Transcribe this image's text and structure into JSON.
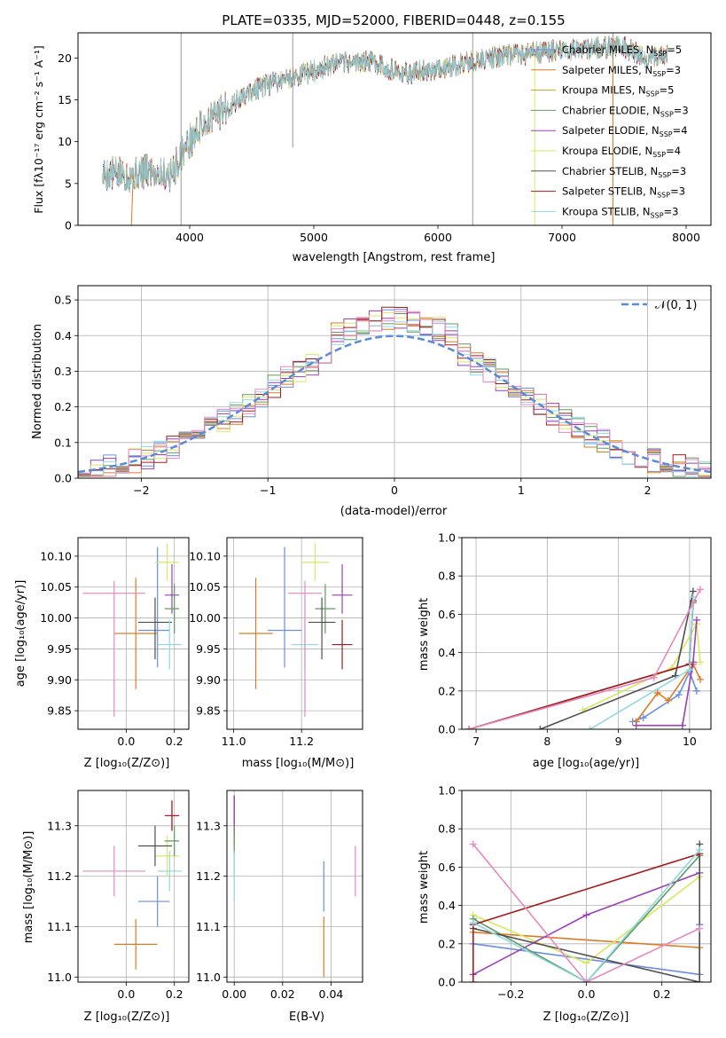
{
  "colors": [
    "#6a8ee0",
    "#e07b24",
    "#c8a020",
    "#5f9a60",
    "#9c3fb8",
    "#d8e860",
    "#505050",
    "#a51c1c",
    "#8fd8e0",
    "#e887c0"
  ],
  "chart_data": [
    {
      "id": "spectrum",
      "type": "line",
      "title": "PLATE=0335, MJD=52000, FIBERID=0448, z=0.155",
      "xlabel": "wavelength [Angstrom, rest frame]",
      "ylabel": "Flux [fλ10⁻¹⁷ erg cm⁻² s⁻¹ A⁻¹]",
      "xlim": [
        3100,
        8200
      ],
      "ylim": [
        0,
        23
      ],
      "xticks": [
        "4000",
        "5000",
        "6000",
        "7000",
        "8000"
      ],
      "yticks": [
        "0",
        "5",
        "10",
        "15",
        "20"
      ],
      "continuum": {
        "x": [
          3300,
          3500,
          3700,
          3850,
          3950,
          4000,
          4100,
          4300,
          4500,
          4700,
          4900,
          5100,
          5300,
          5500,
          5700,
          5900,
          6100,
          6300,
          6500,
          6700,
          6900,
          7100,
          7300,
          7500,
          7700,
          7850
        ],
        "y": [
          6.2,
          6.0,
          6.5,
          6.0,
          9.0,
          10.0,
          12.0,
          14.0,
          16.0,
          17.2,
          18.0,
          19.0,
          19.5,
          19.5,
          18.0,
          18.5,
          19.0,
          19.6,
          20.2,
          20.4,
          20.8,
          21.0,
          21.2,
          21.3,
          19.8,
          20.3
        ]
      },
      "spikes": [
        {
          "x": 4830,
          "y": 9.3
        },
        {
          "x": 6280,
          "y": 0
        },
        {
          "x": 3930,
          "y": 0
        },
        {
          "x": 7410,
          "y": 0
        }
      ],
      "legend_position": "upper right",
      "legend": [
        {
          "label": "Chabrier MILES, N_SSP=5",
          "prefix": "Chabrier MILES, N",
          "sub": "SSP",
          "suffix": "=5"
        },
        {
          "label": "Salpeter MILES, N_SSP=3",
          "prefix": "Salpeter MILES, N",
          "sub": "SSP",
          "suffix": "=3"
        },
        {
          "label": "Kroupa MILES, N_SSP=5",
          "prefix": "Kroupa MILES, N",
          "sub": "SSP",
          "suffix": "=5"
        },
        {
          "label": "Chabrier ELODIE, N_SSP=3",
          "prefix": "Chabrier ELODIE, N",
          "sub": "SSP",
          "suffix": "=3"
        },
        {
          "label": "Salpeter ELODIE, N_SSP=4",
          "prefix": "Salpeter ELODIE, N",
          "sub": "SSP",
          "suffix": "=4"
        },
        {
          "label": "Kroupa ELODIE, N_SSP=4",
          "prefix": "Kroupa ELODIE, N",
          "sub": "SSP",
          "suffix": "=4"
        },
        {
          "label": "Chabrier STELIB, N_SSP=3",
          "prefix": "Chabrier STELIB, N",
          "sub": "SSP",
          "suffix": "=3"
        },
        {
          "label": "Salpeter STELIB, N_SSP=3",
          "prefix": "Salpeter STELIB, N",
          "sub": "SSP",
          "suffix": "=3"
        },
        {
          "label": "Kroupa STELIB, N_SSP=3",
          "prefix": "Kroupa STELIB, N",
          "sub": "SSP",
          "suffix": "=3"
        }
      ]
    },
    {
      "id": "residuals",
      "type": "histogram",
      "xlabel": "(data-model)/error",
      "ylabel": "Normed distribution",
      "xlim": [
        -2.5,
        2.5
      ],
      "ylim": [
        0,
        0.54
      ],
      "xticks": [
        "−2",
        "−1",
        "0",
        "1",
        "2"
      ],
      "yticks": [
        "0.0",
        "0.1",
        "0.2",
        "0.3",
        "0.4",
        "0.5"
      ],
      "grid": true,
      "bin_width": 0.1,
      "legend": [
        {
          "label": "𝒩(0, 1)"
        }
      ],
      "legend_position": "upper right",
      "reference_curve": "normal(0,1)"
    },
    {
      "id": "age-vs-Z",
      "type": "errorbar",
      "xlabel": "Z [log₁₀(Z/Z⊙)]",
      "ylabel": "age  [log₁₀(age/yr)]",
      "xlim": [
        -0.2,
        0.26
      ],
      "ylim": [
        9.82,
        10.13
      ],
      "xticks": [
        "0.0",
        "0.2"
      ],
      "yticks": [
        "9.85",
        "9.90",
        "9.95",
        "10.00",
        "10.05",
        "10.10"
      ],
      "points": [
        {
          "c": 0,
          "x": 0.13,
          "xerr": [
            0.08,
            0.05
          ],
          "y": 9.98,
          "yerr": [
            0.06,
            0.135
          ]
        },
        {
          "c": 1,
          "x": 0.04,
          "xerr": [
            0.09,
            0.09
          ],
          "y": 9.975,
          "yerr": [
            0.09,
            0.09
          ]
        },
        {
          "c": 5,
          "x": 0.17,
          "xerr": [
            0.05,
            0.05
          ],
          "y": 10.09,
          "yerr": [
            0.03,
            0.03
          ]
        },
        {
          "c": 4,
          "x": 0.19,
          "xerr": [
            0.03,
            0.03
          ],
          "y": 10.037,
          "yerr": [
            0.03,
            0.05
          ]
        },
        {
          "c": 3,
          "x": 0.2,
          "xerr": [
            0.04,
            0.02
          ],
          "y": 10.015,
          "yerr": [
            0.04,
            0.04
          ]
        },
        {
          "c": 6,
          "x": 0.12,
          "xerr": [
            0.07,
            0.07
          ],
          "y": 9.993,
          "yerr": [
            0.06,
            0.04
          ]
        },
        {
          "c": 8,
          "x": 0.18,
          "xerr": [
            0.05,
            0.05
          ],
          "y": 9.957,
          "yerr": [
            0.04,
            0.04
          ]
        },
        {
          "c": 9,
          "x": -0.05,
          "xerr": [
            0.13,
            0.13
          ],
          "y": 10.04,
          "yerr": [
            0.2,
            0.02
          ]
        }
      ]
    },
    {
      "id": "age-vs-mass",
      "type": "errorbar",
      "xlabel": "mass [log₁₀(M/M⊙)]",
      "xlim": [
        10.98,
        11.38
      ],
      "ylim": [
        9.82,
        10.13
      ],
      "xticks": [
        "11.0",
        "11.2"
      ],
      "yticks": [
        "9.85",
        "9.90",
        "9.95",
        "10.00",
        "10.05",
        "10.10"
      ],
      "points": [
        {
          "c": 0,
          "x": 11.15,
          "xerr": [
            0.05,
            0.05
          ],
          "y": 9.98,
          "yerr": [
            0.06,
            0.135
          ]
        },
        {
          "c": 1,
          "x": 11.065,
          "xerr": [
            0.05,
            0.05
          ],
          "y": 9.975,
          "yerr": [
            0.09,
            0.09
          ]
        },
        {
          "c": 5,
          "x": 11.24,
          "xerr": [
            0.04,
            0.04
          ],
          "y": 10.09,
          "yerr": [
            0.03,
            0.03
          ]
        },
        {
          "c": 4,
          "x": 11.32,
          "xerr": [
            0.03,
            0.03
          ],
          "y": 10.037,
          "yerr": [
            0.03,
            0.05
          ]
        },
        {
          "c": 3,
          "x": 11.27,
          "xerr": [
            0.03,
            0.03
          ],
          "y": 10.015,
          "yerr": [
            0.04,
            0.04
          ]
        },
        {
          "c": 6,
          "x": 11.26,
          "xerr": [
            0.04,
            0.04
          ],
          "y": 9.993,
          "yerr": [
            0.06,
            0.04
          ]
        },
        {
          "c": 7,
          "x": 11.32,
          "xerr": [
            0.03,
            0.03
          ],
          "y": 9.957,
          "yerr": [
            0.04,
            0.04
          ]
        },
        {
          "c": 8,
          "x": 11.21,
          "xerr": [
            0.04,
            0.04
          ],
          "y": 9.957,
          "yerr": [
            0.04,
            0.04
          ]
        },
        {
          "c": 9,
          "x": 11.21,
          "xerr": [
            0.05,
            0.05
          ],
          "y": 10.04,
          "yerr": [
            0.2,
            0.02
          ]
        }
      ]
    },
    {
      "id": "massweight-vs-age",
      "type": "line",
      "xlabel": "age  [log₁₀(age/yr)]",
      "ylabel": "mass weight",
      "xlim": [
        6.8,
        10.3
      ],
      "ylim": [
        0,
        1
      ],
      "xticks": [
        "7",
        "8",
        "9",
        "10"
      ],
      "yticks": [
        "0.0",
        "0.2",
        "0.4",
        "0.6",
        "0.8",
        "1.0"
      ],
      "grid": true,
      "series": [
        {
          "c": 0,
          "x": [
            9.2,
            9.35,
            9.85,
            10.0,
            10.1
          ],
          "y": [
            0.04,
            0.06,
            0.18,
            0.3,
            0.2
          ]
        },
        {
          "c": 1,
          "x": [
            9.25,
            9.55,
            9.7,
            10.05,
            10.15
          ],
          "y": [
            0.04,
            0.19,
            0.15,
            0.34,
            0.26
          ]
        },
        {
          "c": 5,
          "x": [
            8.5,
            9.75,
            10.1,
            10.15
          ],
          "y": [
            0.1,
            0.32,
            0.55,
            0.35
          ]
        },
        {
          "c": 4,
          "x": [
            9.25,
            9.9,
            10.05,
            10.1
          ],
          "y": [
            0.02,
            0.02,
            0.35,
            0.57
          ]
        },
        {
          "c": 3,
          "x": [
            6.9,
            10.0,
            10.05
          ],
          "y": [
            0.0,
            0.34,
            0.66
          ]
        },
        {
          "c": 6,
          "x": [
            7.9,
            9.8,
            10.05
          ],
          "y": [
            0.0,
            0.28,
            0.72
          ]
        },
        {
          "c": 7,
          "x": [
            6.9,
            10.0,
            10.05
          ],
          "y": [
            0.0,
            0.34,
            0.67
          ]
        },
        {
          "c": 8,
          "x": [
            8.6,
            10.0,
            10.05
          ],
          "y": [
            0.0,
            0.31,
            0.69
          ]
        },
        {
          "c": 9,
          "x": [
            6.9,
            9.5,
            10.15
          ],
          "y": [
            0.0,
            0.27,
            0.73
          ]
        }
      ]
    },
    {
      "id": "mass-vs-Z",
      "type": "errorbar",
      "xlabel": "Z [log₁₀(Z/Z⊙)]",
      "ylabel": "mass [log₁₀(M/M⊙)]",
      "xlim": [
        -0.2,
        0.26
      ],
      "ylim": [
        10.99,
        11.37
      ],
      "xticks": [
        "0.0",
        "0.2"
      ],
      "yticks": [
        "11.0",
        "11.1",
        "11.2",
        "11.3"
      ],
      "points": [
        {
          "c": 0,
          "x": 0.13,
          "xerr": [
            0.08,
            0.05
          ],
          "y": 11.15,
          "yerr": [
            0.05,
            0.05
          ]
        },
        {
          "c": 1,
          "x": 0.04,
          "xerr": [
            0.09,
            0.09
          ],
          "y": 11.065,
          "yerr": [
            0.05,
            0.05
          ]
        },
        {
          "c": 5,
          "x": 0.17,
          "xerr": [
            0.05,
            0.05
          ],
          "y": 11.24,
          "yerr": [
            0.04,
            0.04
          ]
        },
        {
          "c": 4,
          "x": 0.19,
          "xerr": [
            0.03,
            0.03
          ],
          "y": 11.32,
          "yerr": [
            0.03,
            0.03
          ]
        },
        {
          "c": 3,
          "x": 0.2,
          "xerr": [
            0.04,
            0.02
          ],
          "y": 11.27,
          "yerr": [
            0.03,
            0.03
          ]
        },
        {
          "c": 6,
          "x": 0.12,
          "xerr": [
            0.07,
            0.07
          ],
          "y": 11.26,
          "yerr": [
            0.04,
            0.04
          ]
        },
        {
          "c": 7,
          "x": 0.19,
          "xerr": [
            0.03,
            0.03
          ],
          "y": 11.32,
          "yerr": [
            0.03,
            0.03
          ]
        },
        {
          "c": 8,
          "x": 0.18,
          "xerr": [
            0.05,
            0.05
          ],
          "y": 11.21,
          "yerr": [
            0.04,
            0.04
          ]
        },
        {
          "c": 9,
          "x": -0.05,
          "xerr": [
            0.13,
            0.13
          ],
          "y": 11.21,
          "yerr": [
            0.05,
            0.05
          ]
        }
      ]
    },
    {
      "id": "mass-vs-ebv",
      "type": "errorbar",
      "xlabel": "E(B-V)",
      "xlim": [
        -0.003,
        0.053
      ],
      "ylim": [
        10.99,
        11.37
      ],
      "xticks": [
        "0.00",
        "0.02",
        "0.04"
      ],
      "yticks": [
        "11.0",
        "11.1",
        "11.2",
        "11.3"
      ],
      "points": [
        {
          "c": 0,
          "x": 0.037,
          "xerr": [
            0,
            0
          ],
          "y": 11.18,
          "yerr": [
            0.05,
            0.05
          ]
        },
        {
          "c": 1,
          "x": 0.037,
          "xerr": [
            0,
            0
          ],
          "y": 11.06,
          "yerr": [
            0.06,
            0.06
          ]
        },
        {
          "c": 9,
          "x": 0.05,
          "xerr": [
            0,
            0
          ],
          "y": 11.21,
          "yerr": [
            0.05,
            0.05
          ]
        },
        {
          "c": 7,
          "x": 0.0,
          "xerr": [
            0,
            0
          ],
          "y": 11.31,
          "yerr": [
            0.05,
            0.05
          ]
        },
        {
          "c": 4,
          "x": 0.0,
          "xerr": [
            0,
            0
          ],
          "y": 11.32,
          "yerr": [
            0.04,
            0.04
          ]
        },
        {
          "c": 5,
          "x": 0.0,
          "xerr": [
            0,
            0
          ],
          "y": 11.24,
          "yerr": [
            0.04,
            0.04
          ]
        },
        {
          "c": 3,
          "x": 0.0,
          "xerr": [
            0,
            0
          ],
          "y": 11.27,
          "yerr": [
            0.03,
            0.03
          ]
        },
        {
          "c": 8,
          "x": 0.0,
          "xerr": [
            0,
            0
          ],
          "y": 11.2,
          "yerr": [
            0.05,
            0.05
          ]
        }
      ]
    },
    {
      "id": "massweight-vs-Z",
      "type": "line",
      "xlabel": "Z [log₁₀(Z/Z⊙)]",
      "ylabel": "mass weight",
      "xlim": [
        -0.33,
        0.33
      ],
      "ylim": [
        0,
        1
      ],
      "xticks": [
        "−0.2",
        "0.0",
        "0.2"
      ],
      "yticks": [
        "0.0",
        "0.2",
        "0.4",
        "0.6",
        "0.8",
        "1.0"
      ],
      "grid": true,
      "series": [
        {
          "c": 0,
          "x": [
            -0.3,
            0.3,
            0.3,
            0.3
          ],
          "y": [
            0.2,
            0.04,
            0.3,
            0.04
          ]
        },
        {
          "c": 1,
          "x": [
            -0.3,
            0.3,
            0.3
          ],
          "y": [
            0.26,
            0.18,
            0.0
          ]
        },
        {
          "c": 5,
          "x": [
            -0.3,
            0.0,
            0.3
          ],
          "y": [
            0.35,
            0.1,
            0.55
          ]
        },
        {
          "c": 4,
          "x": [
            -0.3,
            0.0,
            0.3
          ],
          "y": [
            0.04,
            0.35,
            0.57
          ]
        },
        {
          "c": 3,
          "x": [
            -0.3,
            0.0,
            0.3
          ],
          "y": [
            0.33,
            0.0,
            0.66
          ]
        },
        {
          "c": 6,
          "x": [
            -0.3,
            0.3,
            0.3
          ],
          "y": [
            0.28,
            0.0,
            0.72
          ]
        },
        {
          "c": 7,
          "x": [
            -0.3,
            -0.3,
            0.3
          ],
          "y": [
            0.0,
            0.3,
            0.67
          ]
        },
        {
          "c": 8,
          "x": [
            -0.3,
            0.0,
            0.3
          ],
          "y": [
            0.31,
            0.0,
            0.69
          ]
        },
        {
          "c": 9,
          "x": [
            -0.3,
            0.0,
            0.3
          ],
          "y": [
            0.72,
            0.0,
            0.28
          ]
        }
      ]
    }
  ]
}
